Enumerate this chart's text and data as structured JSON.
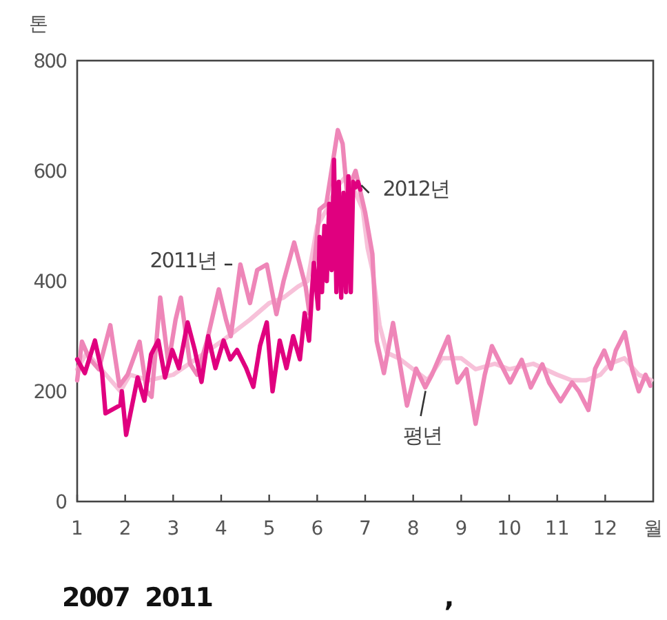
{
  "chart_data": {
    "type": "line",
    "ylabel": "톤",
    "xlabel": "월",
    "xlim": [
      1,
      13
    ],
    "xticks": [
      1,
      2,
      3,
      4,
      5,
      6,
      7,
      8,
      9,
      10,
      11,
      12
    ],
    "ylim": [
      0,
      800
    ],
    "yticks": [
      0,
      200,
      400,
      600,
      800
    ],
    "grid": false,
    "line_style": "solid",
    "series": [
      {
        "color": "#f7c1d9",
        "x": [
          1,
          1.2,
          1.5,
          1.9,
          2.1,
          2.5,
          3,
          3.5,
          4,
          4.3,
          4.6,
          5,
          5.3,
          5.6,
          5.8,
          6,
          6.2,
          6.4,
          6.6,
          6.8,
          6.95,
          7.05,
          7.15,
          7.3,
          7.45,
          7.7,
          8,
          8.3,
          8.6,
          9,
          9.3,
          9.7,
          10,
          10.5,
          11,
          11.3,
          11.6,
          11.9,
          12.1,
          12.4,
          12.7,
          12.96
        ],
        "values": [
          240,
          270,
          240,
          200,
          230,
          220,
          230,
          260,
          290,
          310,
          330,
          360,
          370,
          390,
          400,
          500,
          530,
          570,
          590,
          560,
          530,
          460,
          420,
          320,
          270,
          260,
          240,
          220,
          260,
          260,
          240,
          250,
          240,
          250,
          230,
          220,
          220,
          230,
          250,
          260,
          230,
          220
        ]
      },
      {
        "color": "#ee86b8",
        "x": [
          1,
          1.1,
          1.25,
          1.45,
          1.69,
          1.88,
          2.05,
          2.3,
          2.45,
          2.55,
          2.73,
          2.9,
          3.05,
          3.16,
          3.35,
          3.5,
          3.7,
          3.95,
          4.1,
          4.2,
          4.4,
          4.6,
          4.75,
          4.95,
          5.15,
          5.3,
          5.52,
          5.76,
          5.84,
          6.05,
          6.19,
          6.43,
          6.53,
          6.62,
          6.8,
          7,
          7.15,
          7.24,
          7.39,
          7.58,
          7.87,
          8.06,
          8.25,
          8.39,
          8.73,
          8.92,
          9.11,
          9.3,
          9.49,
          9.64,
          9.88,
          10.02,
          10.26,
          10.45,
          10.69,
          10.83,
          11.07,
          11.31,
          11.45,
          11.65,
          11.79,
          11.98,
          12.12,
          12.22,
          12.41,
          12.56,
          12.7,
          12.84,
          12.94
        ],
        "values": [
          220,
          290,
          260,
          240,
          320,
          210,
          230,
          290,
          200,
          190,
          370,
          250,
          330,
          370,
          250,
          230,
          290,
          385,
          330,
          300,
          430,
          360,
          420,
          430,
          340,
          400,
          470,
          390,
          341,
          530,
          540,
          674,
          649,
          560,
          600,
          524,
          449,
          291,
          233,
          324,
          174,
          241,
          207,
          230,
          299,
          216,
          240,
          141,
          230,
          282,
          240,
          216,
          257,
          207,
          249,
          216,
          182,
          216,
          200,
          166,
          241,
          274,
          241,
          274,
          307,
          240,
          200,
          230,
          210
        ]
      },
      {
        "color": "#e0007f",
        "x": [
          1,
          1.16,
          1.37,
          1.52,
          1.59,
          1.9,
          1.93,
          2.02,
          2.26,
          2.4,
          2.54,
          2.69,
          2.83,
          2.98,
          3.12,
          3.3,
          3.45,
          3.59,
          3.73,
          3.88,
          4.05,
          4.19,
          4.33,
          4.52,
          4.67,
          4.81,
          4.95,
          5.07,
          5.22,
          5.36,
          5.5,
          5.64,
          5.74,
          5.83,
          5.93,
          6.02,
          6.05,
          6.1,
          6.15,
          6.2,
          6.25,
          6.3,
          6.35,
          6.4,
          6.45,
          6.5,
          6.55,
          6.6,
          6.65,
          6.7,
          6.75,
          6.8,
          6.85,
          6.9
        ],
        "values": [
          258,
          233,
          292,
          233,
          160,
          175,
          200,
          121,
          225,
          183,
          267,
          292,
          225,
          275,
          242,
          325,
          275,
          217,
          300,
          242,
          292,
          258,
          275,
          242,
          208,
          283,
          325,
          200,
          292,
          242,
          300,
          258,
          342,
          292,
          433,
          350,
          480,
          380,
          500,
          400,
          540,
          420,
          620,
          380,
          580,
          370,
          560,
          380,
          590,
          380,
          580,
          570,
          580,
          566
        ]
      }
    ],
    "annotations": [
      {
        "text": "2012년",
        "x": 6.85,
        "y": 580
      },
      {
        "text": "2011년",
        "x": 4.3,
        "y": 430
      },
      {
        "text": "평년",
        "x": 8.3,
        "y": 220
      },
      "2007  2011                              ,"
    ]
  }
}
